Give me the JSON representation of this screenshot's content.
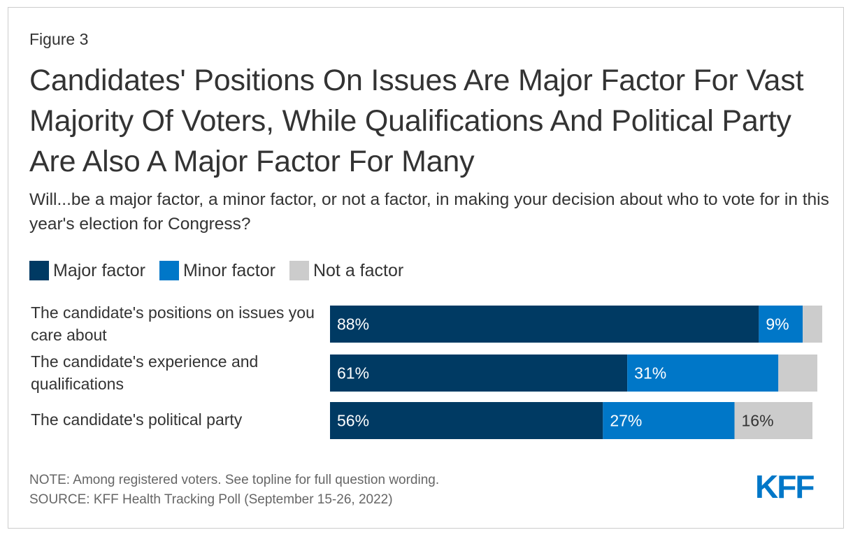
{
  "figure_label": "Figure 3",
  "title": "Candidates' Positions On Issues Are Major Factor For Vast Majority Of Voters, While Qualifications And Political Party Are Also A Major Factor For Many",
  "subtitle": "Will...be a major factor, a minor factor, or not a factor, in making your decision about who to vote for in this year's election for Congress?",
  "colors": {
    "major": "#003a63",
    "minor": "#0077c8",
    "not": "#cccccc",
    "logo": "#0077c8"
  },
  "chart_data": {
    "type": "bar",
    "orientation": "horizontal-stacked",
    "title": "Candidates' Positions On Issues Are Major Factor For Vast Majority Of Voters, While Qualifications And Political Party Are Also A Major Factor For Many",
    "categories": [
      "The candidate's positions on issues you care about",
      "The candidate's experience and qualifications",
      "The candidate's political party"
    ],
    "series": [
      {
        "name": "Major factor",
        "values": [
          88,
          61,
          56
        ],
        "labels": [
          "88%",
          "61%",
          "56%"
        ]
      },
      {
        "name": "Minor factor",
        "values": [
          9,
          31,
          27
        ],
        "labels": [
          "9%",
          "31%",
          "27%"
        ]
      },
      {
        "name": "Not a factor",
        "values": [
          4,
          8,
          16
        ],
        "labels": [
          "",
          "",
          "16%"
        ]
      }
    ],
    "xlim": [
      0,
      100
    ],
    "legend": "top-left",
    "grid": false
  },
  "footer": {
    "note": "NOTE: Among registered voters. See topline for full question wording.",
    "source": "SOURCE: KFF Health Tracking Poll (September 15-26, 2022)"
  },
  "logo_text": "KFF"
}
